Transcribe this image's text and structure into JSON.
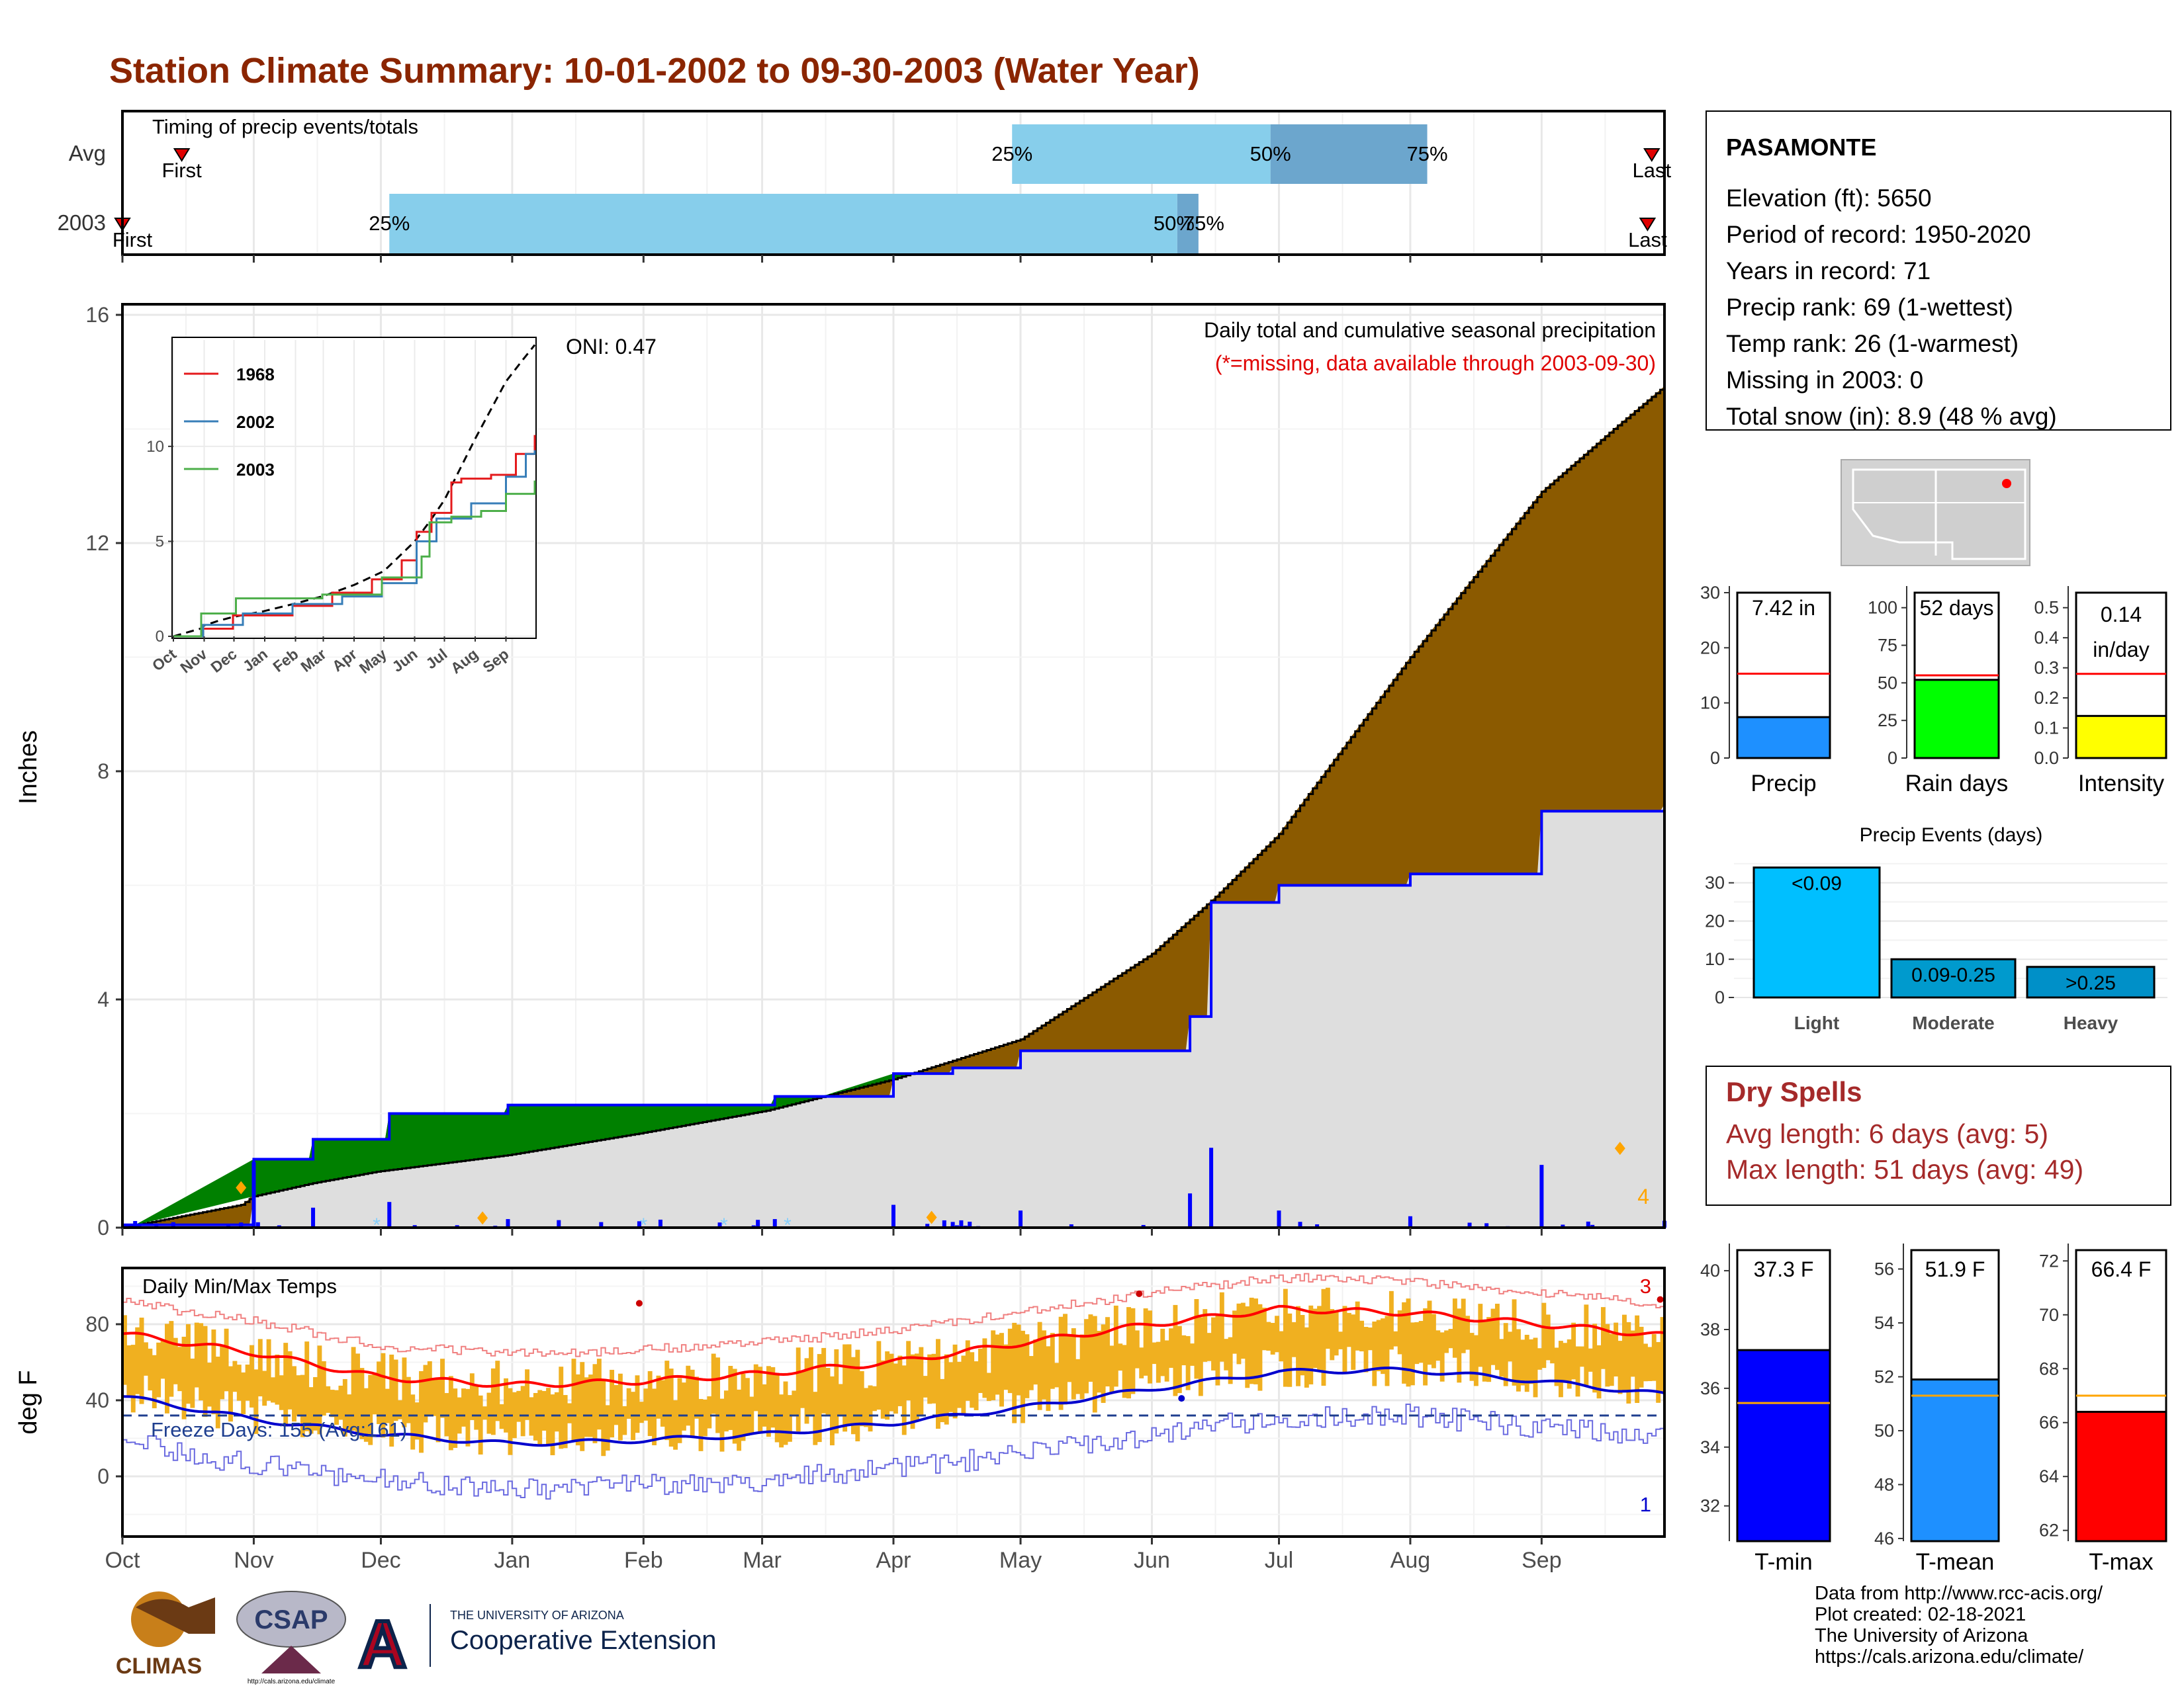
{
  "title": "Station Climate Summary: 10-01-2002 to 09-30-2003 (Water Year)",
  "colors": {
    "title": "#8B2500",
    "precip_fill": "#8B5A00",
    "deficit_green": "#008000",
    "cumulative_line": "#0000FF",
    "normal_area": "#DEDEDE",
    "timing_light": "#87CEEB",
    "timing_dark": "#6CA6CD",
    "temp_bar": "#F0B020",
    "max_line": "#FF0000",
    "min_line": "#0000CD"
  },
  "timing": {
    "title": "Timing of precip events/totals",
    "rows": [
      {
        "label": "Avg",
        "first_label": "First",
        "last_label": "Last",
        "first": "2002-10-15",
        "p25": "2003-04-29",
        "p50": "2003-06-29",
        "p75": "2003-08-05",
        "last": "2003-09-27",
        "p25_label": "25%",
        "p50_label": "50%",
        "p75_label": "75%"
      },
      {
        "label": "2003",
        "first_label": "First",
        "last_label": "Last",
        "first": "2002-10-01",
        "p25": "2002-12-03",
        "p50": "2003-06-07",
        "p75": "2003-06-12",
        "last": "2003-09-26",
        "p25_label": "25%",
        "p50_label": "50%",
        "p75_label": "75%"
      }
    ]
  },
  "precip": {
    "ylabel": "Inches",
    "annotation_1": "Daily total and cumulative seasonal precipitation",
    "annotation_2": "(*=missing, data available through 2003-09-30)",
    "oni_label": "ONI: 0.47",
    "corner_count": "4",
    "yticks": [
      "0",
      "4",
      "8",
      "12",
      "16"
    ]
  },
  "temps": {
    "title": "Daily Min/Max Temps",
    "ylabel": "deg F",
    "freeze_label": "Freeze Days: 155 (Avg:161)",
    "count_max": "3",
    "count_min": "1",
    "yticks": [
      "0",
      "40",
      "80"
    ]
  },
  "months": [
    "Oct",
    "Nov",
    "Dec",
    "Jan",
    "Feb",
    "Mar",
    "Apr",
    "May",
    "Jun",
    "Jul",
    "Aug",
    "Sep"
  ],
  "inset": {
    "legend": [
      "1968",
      "2002",
      "2003"
    ],
    "legend_colors": [
      "#E41A1C",
      "#377EB8",
      "#4DAF4A"
    ],
    "yticks": [
      "0",
      "5",
      "10"
    ],
    "months": [
      "Oct",
      "Nov",
      "Dec",
      "Jan",
      "Feb",
      "Mar",
      "Apr",
      "May",
      "Jun",
      "Jul",
      "Aug",
      "Sep"
    ]
  },
  "station": {
    "name": "PASAMONTE",
    "lines": [
      "Elevation (ft): 5650",
      "Period of record: 1950-2020",
      "Years in record: 71",
      "Precip rank: 69 (1-wettest)",
      "Temp rank: 26 (1-warmest)",
      "Missing in 2003: 0",
      "Total snow (in): 8.9 (48 % avg)"
    ]
  },
  "summary_bars": [
    {
      "label": "Precip",
      "value_label": "7.42 in",
      "value": 7.42,
      "avg": 15.3,
      "ymax": 30,
      "ticks": [
        "0",
        "10",
        "20",
        "30"
      ],
      "tick_values": [
        0,
        10,
        20,
        30
      ],
      "color": "#1E90FF"
    },
    {
      "label": "Rain days",
      "value_label": "52 days",
      "value": 52,
      "avg": 55,
      "ymax": 110,
      "ticks": [
        "0",
        "25",
        "50",
        "75",
        "100"
      ],
      "tick_values": [
        0,
        25,
        50,
        75,
        100
      ],
      "color": "#00FF00"
    },
    {
      "label": "Intensity",
      "value_label_1": "0.14",
      "value_label_2": "in/day",
      "value": 0.14,
      "avg": 0.28,
      "ymax": 0.55,
      "ticks": [
        "0.0",
        "0.1",
        "0.2",
        "0.3",
        "0.4",
        "0.5"
      ],
      "tick_values": [
        0,
        0.1,
        0.2,
        0.3,
        0.4,
        0.5
      ],
      "color": "#FFFF00"
    }
  ],
  "events": {
    "title": "Precip Events (days)",
    "categories": [
      "Light",
      "Moderate",
      "Heavy"
    ],
    "bar_labels": [
      "<0.09",
      "0.09-0.25",
      ">0.25"
    ],
    "values": [
      34,
      10,
      8
    ],
    "yticks": [
      "0",
      "10",
      "20",
      "30"
    ],
    "colors": [
      "#00BFFF",
      "#009ACD",
      "#0090C8"
    ]
  },
  "dry_spells": {
    "title": "Dry Spells",
    "avg": "Avg length: 6 days (avg: 5)",
    "max": "Max length: 51 days (avg: 49)"
  },
  "temp_bars": [
    {
      "label": "T-min",
      "value_label": "37.3 F",
      "value": 37.3,
      "avg": 35.5,
      "ymin": 30.8,
      "ymax": 40.7,
      "ticks": [
        "32",
        "34",
        "36",
        "38",
        "40"
      ],
      "tick_values": [
        32,
        34,
        36,
        38,
        40
      ],
      "color": "#0000FF"
    },
    {
      "label": "T-mean",
      "value_label": "51.9 F",
      "value": 51.9,
      "avg": 51.3,
      "ymin": 45.9,
      "ymax": 56.7,
      "ticks": [
        "46",
        "48",
        "50",
        "52",
        "54",
        "56"
      ],
      "tick_values": [
        46,
        48,
        50,
        52,
        54,
        56
      ],
      "color": "#1E90FF"
    },
    {
      "label": "T-max",
      "value_label": "66.4 F",
      "value": 66.4,
      "avg": 67.0,
      "ymin": 61.6,
      "ymax": 72.4,
      "ticks": [
        "62",
        "64",
        "66",
        "68",
        "70",
        "72"
      ],
      "tick_values": [
        62,
        64,
        66,
        68,
        70,
        72
      ],
      "color": "#FF0000"
    }
  ],
  "credits": [
    "Data from http://www.rcc-acis.org/",
    "Plot created: 02-18-2021",
    "The University of Arizona",
    "https://cals.arizona.edu/climate/"
  ],
  "logos": {
    "climas": "CLIMAS",
    "csap": "CSAP",
    "csap_url": "http://cals.arizona.edu/climate",
    "ua_line1": "THE UNIVERSITY OF ARIZONA",
    "ua_line2": "Cooperative Extension"
  },
  "chart_data": [
    {
      "type": "area",
      "title": "Daily total and cumulative seasonal precipitation",
      "ylabel": "Inches",
      "ylim": [
        0,
        16
      ],
      "x_range": [
        "2002-10-01",
        "2003-09-30"
      ],
      "series": [
        {
          "name": "Daily total and cumulative seasonal precipitation",
          "x": [
            "2002-10-01",
            "2002-11-01",
            "2002-11-15",
            "2002-12-03",
            "2002-12-31",
            "2003-01-31",
            "2003-03-04",
            "2003-04-01",
            "2003-04-15",
            "2003-05-01",
            "2003-06-01",
            "2003-06-10",
            "2003-06-15",
            "2003-07-01",
            "2003-08-01",
            "2003-08-15",
            "2003-09-01",
            "2003-09-30"
          ],
          "y": [
            0.05,
            1.2,
            1.55,
            2.0,
            2.15,
            2.15,
            2.3,
            2.7,
            2.8,
            3.1,
            3.1,
            3.7,
            5.7,
            6.0,
            6.2,
            6.2,
            7.3,
            7.42
          ]
        }
      ]
    },
    {
      "type": "line",
      "title": "Daily Min/Max Temps",
      "ylabel": "deg F",
      "ylim": [
        -25,
        105
      ],
      "x_range": [
        "2002-10-01",
        "2003-09-30"
      ],
      "series": [
        {
          "name": "max",
          "x": [
            "2002-10-01",
            "2002-11-01",
            "2002-12-01",
            "2003-01-01",
            "2003-02-01",
            "2003-03-01",
            "2003-04-01",
            "2003-05-01",
            "2003-06-01",
            "2003-07-01",
            "2003-08-01",
            "2003-09-01",
            "2003-09-30"
          ],
          "y": [
            75,
            65,
            52,
            48,
            50,
            54,
            60,
            70,
            80,
            88,
            86,
            80,
            74
          ]
        },
        {
          "name": "min",
          "x": [
            "2002-10-01",
            "2002-11-01",
            "2002-12-01",
            "2003-01-01",
            "2003-02-01",
            "2003-03-01",
            "2003-04-01",
            "2003-05-01",
            "2003-06-01",
            "2003-07-01",
            "2003-08-01",
            "2003-09-01",
            "2003-09-30"
          ],
          "y": [
            42,
            30,
            22,
            17,
            19,
            22,
            28,
            36,
            46,
            55,
            56,
            50,
            43
          ]
        }
      ]
    },
    {
      "type": "bar",
      "title": "Precip Events (days)",
      "categories": [
        "Light",
        "Moderate",
        "Heavy"
      ],
      "values": [
        34,
        10,
        8
      ],
      "ylim": [
        0,
        36
      ]
    }
  ]
}
